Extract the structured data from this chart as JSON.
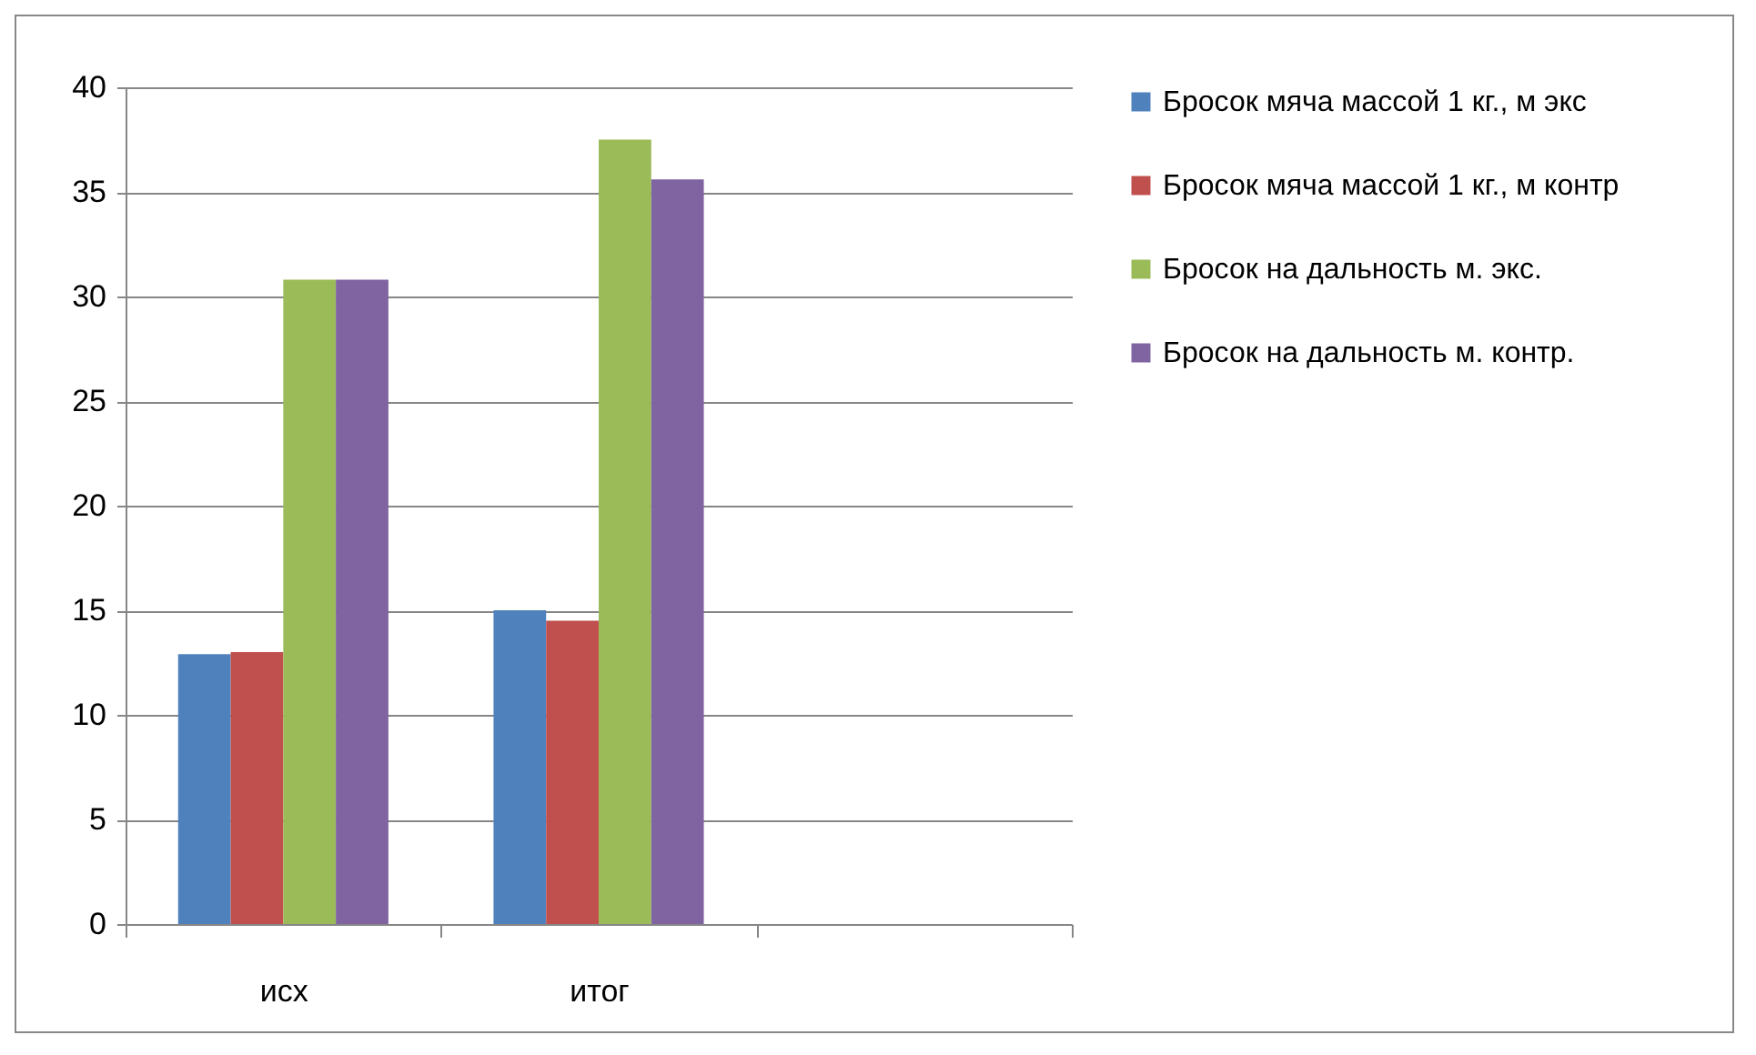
{
  "chart_data": {
    "type": "bar",
    "categories": [
      "исх",
      "итог",
      null
    ],
    "series": [
      {
        "name": "Бросок мяча массой 1 кг., м  экс",
        "color": "#4f81bd",
        "values": [
          12.9,
          15.0,
          null
        ]
      },
      {
        "name": "Бросок мяча массой 1 кг., м  контр",
        "color": "#c0504d",
        "values": [
          13.0,
          14.5,
          null
        ]
      },
      {
        "name": "Бросок на дальность м. экс.",
        "color": "#9bbb59",
        "values": [
          30.8,
          37.5,
          null
        ]
      },
      {
        "name": "Бросок на дальность м. контр.",
        "color": "#8064a2",
        "values": [
          30.8,
          35.6,
          null
        ]
      }
    ],
    "ylim": [
      0,
      40
    ],
    "yticks": [
      0,
      5,
      10,
      15,
      20,
      25,
      30,
      35,
      40
    ],
    "grid": "y",
    "legend": "right"
  }
}
